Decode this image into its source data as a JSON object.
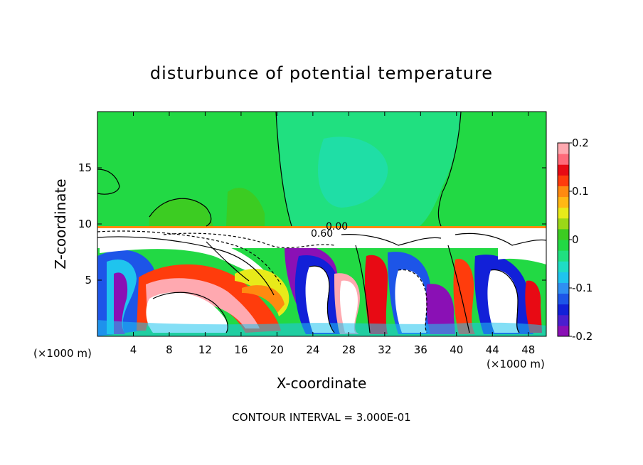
{
  "chart_data": {
    "type": "heatmap",
    "title": "disturbunce of potential temperature",
    "xlabel": "X-coordinate",
    "ylabel": "Z-coordinate",
    "x_unit": "(×1000 m)",
    "y_unit": "(×1000 m)",
    "xlim": [
      0,
      50
    ],
    "ylim": [
      0,
      20
    ],
    "x_ticks": [
      4,
      8,
      12,
      16,
      20,
      24,
      28,
      32,
      36,
      40,
      44,
      48
    ],
    "y_ticks": [
      5,
      10,
      15
    ],
    "colorbar": {
      "min": -0.2,
      "max": 0.2,
      "tick_values": [
        0.2,
        0.1,
        0,
        -0.1,
        -0.2
      ],
      "tick_labels": [
        "0.2",
        "0.1",
        "0",
        "-0.1",
        "-0.2"
      ],
      "colors": [
        "#8a10b5",
        "#4a1fcf",
        "#1220d8",
        "#1d55e8",
        "#2f8ff2",
        "#1fc4ee",
        "#1fdcc4",
        "#20e080",
        "#22d944",
        "#3ccc22",
        "#9bd818",
        "#e8ea1a",
        "#ffb814",
        "#ff8a10",
        "#ff3c0c",
        "#e80a14",
        "#ff6a7a",
        "#ffa9b0"
      ]
    },
    "contour_labels": [
      "0.00",
      "0.60"
    ],
    "contour_interval_note": "CONTOUR INTERVAL = 3.000E-01"
  }
}
